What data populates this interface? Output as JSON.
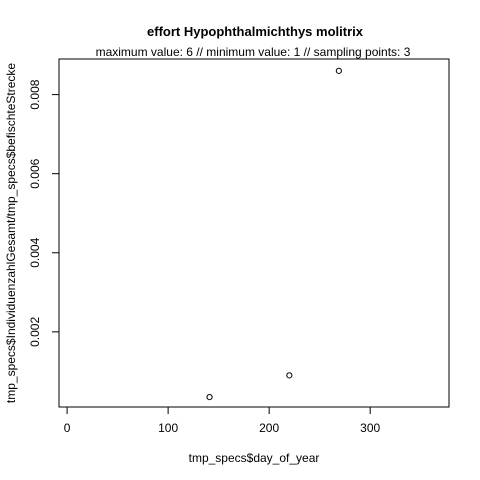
{
  "chart_data": {
    "type": "scatter",
    "title": "effort Hypophthalmichthys molitrix",
    "subtitle": "maximum value: 6  //  minimum value: 1  // sampling points: 3",
    "xlabel": "tmp_specs$day_of_year",
    "ylabel": "tmp_specs$IndividuenzahlGesamt/tmp_specs$befischteStrecke",
    "xlim": [
      -8,
      378
    ],
    "ylim": [
      0.0001,
      0.0089
    ],
    "x_ticks": [
      0,
      100,
      200,
      300
    ],
    "x_tick_labels": [
      "0",
      "100",
      "200",
      "300"
    ],
    "y_ticks": [
      0.002,
      0.004,
      0.006,
      0.008
    ],
    "y_tick_labels": [
      "0.002",
      "0.004",
      "0.006",
      "0.008"
    ],
    "points": [
      {
        "x": 141,
        "y": 0.00035
      },
      {
        "x": 220,
        "y": 0.0009
      },
      {
        "x": 269,
        "y": 0.0086
      }
    ],
    "grid": false,
    "legend": "none",
    "marker": "open-circle",
    "color": "#000000"
  }
}
